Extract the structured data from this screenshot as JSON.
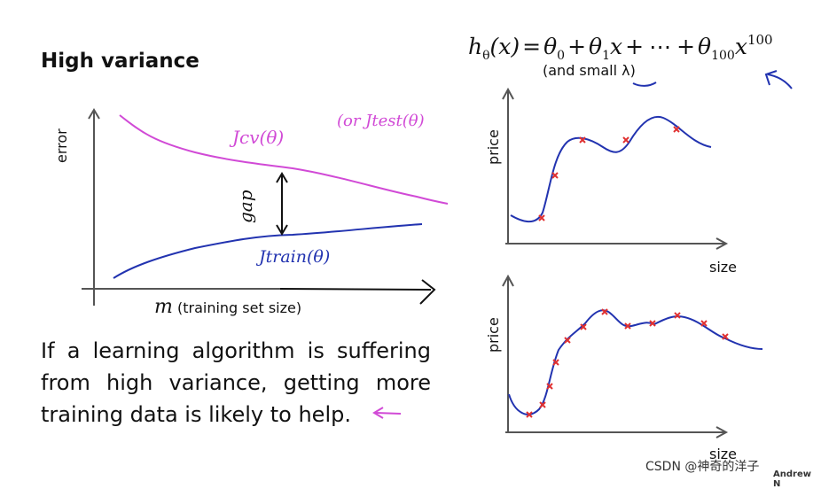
{
  "title": "High variance",
  "formula": {
    "lhs": "h",
    "lhs_sub": "θ",
    "lhs_arg": "(x)",
    "t0": "θ",
    "t0_sub": "0",
    "t1": "θ",
    "t1_sub": "1",
    "t1_var": "x",
    "dots": "⋯",
    "tn": "θ",
    "tn_sub": "100",
    "tn_var": "x",
    "tn_sup": "100"
  },
  "small_note": "(and small λ)",
  "left_plot": {
    "ylabel": "error",
    "xlabel_var": "m",
    "xlabel_text": "(training set size)",
    "cv_label": "Jcv(θ)",
    "test_label": "(or Jtest(θ)",
    "train_label": "Jtrain(θ)",
    "gap_label": "gap"
  },
  "right_plots": {
    "top": {
      "ylabel": "price",
      "xlabel": "size"
    },
    "bottom": {
      "ylabel": "price",
      "xlabel": "size"
    }
  },
  "body_text": "If a learning algorithm is suffering from high variance, getting more training data is likely to help.",
  "watermark": "CSDN @神奇的洋子",
  "credit": "Andrew N",
  "colors": {
    "handwriting_magenta": "#d14ad6",
    "curve_blue": "#2233b0",
    "marker_red": "#e03030",
    "axis": "#555555"
  }
}
